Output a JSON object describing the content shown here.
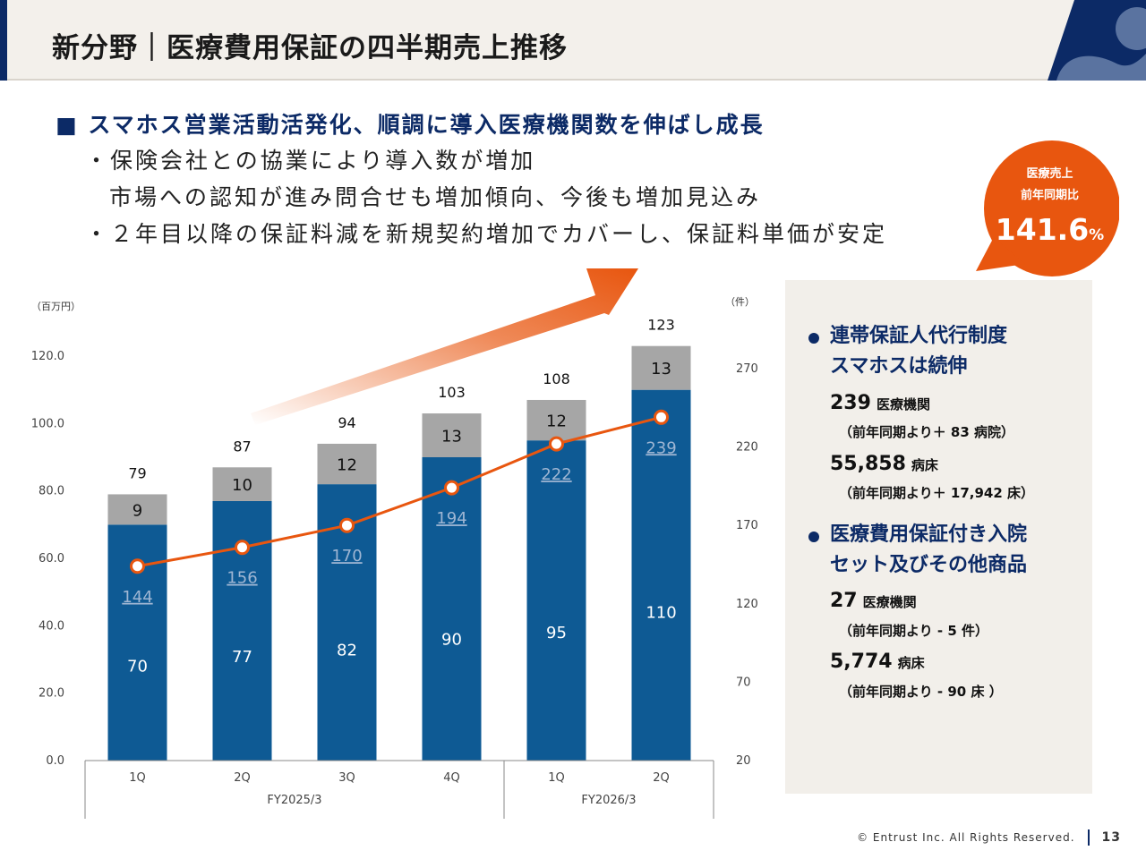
{
  "header": {
    "title": "新分野｜医療費用保証の四半期売上推移"
  },
  "headline": "■ スマホス営業活動活発化、順調に導入医療機関数を伸ばし成長",
  "bullets": [
    "・保険会社との協業により導入数が増加",
    "市場への認知が進み問合せも増加傾向、今後も増加見込み",
    "・２年目以降の保証料減を新規契約増加でカバーし、保証料単価が安定"
  ],
  "bubble": {
    "line1": "医療売上",
    "line2": "前年同期比",
    "value": "141.6",
    "unit": "%",
    "color": "#e8560f"
  },
  "panel": {
    "s1": {
      "title1": "連帯保証人代行制度",
      "title2": "スマホスは続伸",
      "n1": "239",
      "u1": "医療機関",
      "c1": "（前年同期より＋ 83 病院）",
      "n2": "55,858",
      "u2": "病床",
      "c2": "（前年同期より＋ 17,942 床）"
    },
    "s2": {
      "title1": "医療費用保証付き入院",
      "title2": "セット及びその他商品",
      "n1": "27",
      "u1": "医療機関",
      "c1": "（前年同期より - 5 件）",
      "n2": "5,774",
      "u2": "病床",
      "c2": "（前年同期より - 90 床 ）"
    }
  },
  "chart_data": {
    "type": "bar",
    "left_axis": {
      "label": "（百万円）",
      "ylim": [
        0,
        120
      ],
      "ticks": [
        "0.0",
        "20.0",
        "40.0",
        "60.0",
        "80.0",
        "100.0",
        "120.0"
      ]
    },
    "right_axis": {
      "label": "（件）",
      "ylim": [
        20,
        270
      ],
      "ticks": [
        "20",
        "70",
        "120",
        "170",
        "220",
        "270"
      ]
    },
    "categories": [
      "1Q",
      "2Q",
      "3Q",
      "4Q",
      "1Q",
      "2Q"
    ],
    "groups": [
      {
        "label": "FY2025/3",
        "span": 4
      },
      {
        "label": "FY2026/3",
        "span": 2
      }
    ],
    "series": [
      {
        "kind": "stacked-bar",
        "color": "#0e5a94",
        "values": [
          70,
          77,
          82,
          90,
          95,
          110
        ]
      },
      {
        "kind": "stacked-bar",
        "color": "#a6a6a6",
        "values": [
          9,
          10,
          12,
          13,
          12,
          13
        ]
      },
      {
        "kind": "line",
        "axis": "right",
        "color": "#e8560f",
        "values": [
          144,
          156,
          170,
          194,
          222,
          239
        ]
      }
    ],
    "totals": [
      79,
      87,
      94,
      103,
      108,
      123
    ],
    "grid": false
  },
  "footer": {
    "copyright": "© Entrust Inc. All Rights Reserved.",
    "page": "13"
  }
}
